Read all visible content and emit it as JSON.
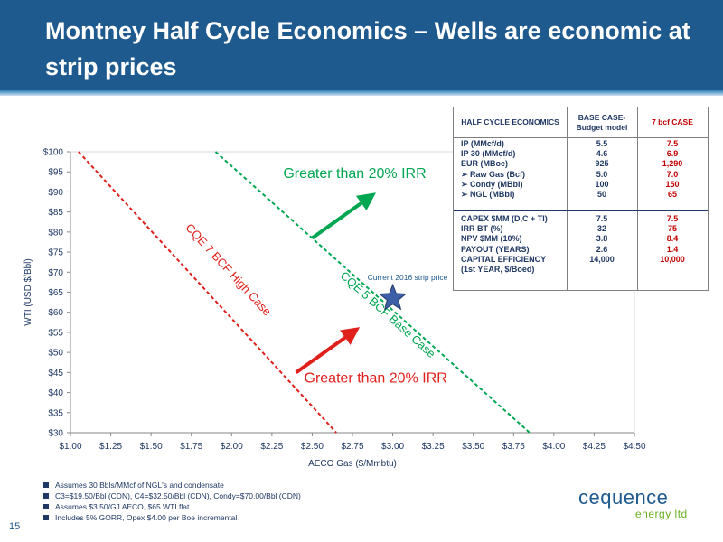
{
  "title": "Montney Half Cycle Economics – Wells are economic at strip prices",
  "chart_data": {
    "type": "line",
    "xlabel": "AECO Gas ($/Mmbtu)",
    "ylabel": "WTI (USD $/Bbl)",
    "xlim": [
      1.0,
      4.5
    ],
    "ylim": [
      30,
      100
    ],
    "x_ticks": [
      "$1.00",
      "$1.25",
      "$1.50",
      "$1.75",
      "$2.00",
      "$2.25",
      "$2.50",
      "$2.75",
      "$3.00",
      "$3.25",
      "$3.50",
      "$3.75",
      "$4.00",
      "$4.25",
      "$4.50"
    ],
    "y_ticks": [
      "$30",
      "$35",
      "$40",
      "$45",
      "$50",
      "$55",
      "$60",
      "$65",
      "$70",
      "$75",
      "$80",
      "$85",
      "$90",
      "$95",
      "$100"
    ],
    "grid": false,
    "series": [
      {
        "name": "CQE 7 BCF High Case",
        "color": "#e0201b",
        "x": [
          1.05,
          2.65
        ],
        "y": [
          100,
          30
        ]
      },
      {
        "name": "CQE 5 BCF Base Case",
        "color": "#00a651",
        "x": [
          1.9,
          3.85
        ],
        "y": [
          100,
          30
        ]
      }
    ],
    "marker": {
      "label": "Current  2016 strip price",
      "x": 3.0,
      "y": 63.5,
      "color": "#3d5fa8"
    },
    "annotations": [
      {
        "text": "Greater  than 20% IRR",
        "color": "#00a651",
        "x": 2.32,
        "y": 93.5
      },
      {
        "text": "Greater than 20% IRR",
        "color": "#e0201b",
        "x": 2.45,
        "y": 42.5
      }
    ],
    "arrows": [
      {
        "color": "#00a651",
        "from": [
          2.5,
          78.5
        ],
        "to": [
          2.85,
          88.5
        ]
      },
      {
        "color": "#e0201b",
        "from": [
          2.4,
          45
        ],
        "to": [
          2.75,
          55
        ]
      }
    ]
  },
  "table": {
    "headers": [
      "HALF CYCLE ECONOMICS",
      "BASE CASE-\nBudget model",
      "7 bcf CASE"
    ],
    "section1": [
      {
        "label": "IP (MMcf/d)",
        "base": "5.5",
        "high": "7.5"
      },
      {
        "label": "IP 30 (MMcf/d)",
        "base": "4.6",
        "high": "6.9"
      },
      {
        "label": "EUR (MBoe)",
        "base": "925",
        "high": "1,290"
      },
      {
        "label": "➢  Raw Gas (Bcf)",
        "base": "5.0",
        "high": "7.0"
      },
      {
        "label": "➢  Condy (MBbl)",
        "base": "100",
        "high": "150"
      },
      {
        "label": "➢  NGL (MBbl)",
        "base": "50",
        "high": "65"
      }
    ],
    "section2": [
      {
        "label": "CAPEX $MM (D,C + TI)",
        "base": "7.5",
        "high": "7.5"
      },
      {
        "label": "IRR BT (%)",
        "base": "32",
        "high": "75"
      },
      {
        "label": "NPV $MM (10%)",
        "base": "3.8",
        "high": "8.4"
      },
      {
        "label": "PAYOUT (YEARS)",
        "base": "2.6",
        "high": "1.4"
      },
      {
        "label": "CAPITAL EFFICIENCY",
        "base": "14,000",
        "high": "10,000"
      },
      {
        "label": "(1st YEAR, $/Boed)",
        "base": "",
        "high": ""
      }
    ]
  },
  "notes": [
    "Assumes 30 Bbls/MMcf of NGL's and condensate",
    "C3=$19.50/Bbl (CDN), C4=$32.50/Bbl (CDN), Condy=$70.00/Bbl (CDN)",
    "Assumes $3.50/GJ AECO, $65 WTI flat",
    "Includes 5% GORR, Opex $4.00 per Boe incremental"
  ],
  "page_number": "15",
  "logo": {
    "name": "cequence",
    "sub": "energy ltd"
  }
}
